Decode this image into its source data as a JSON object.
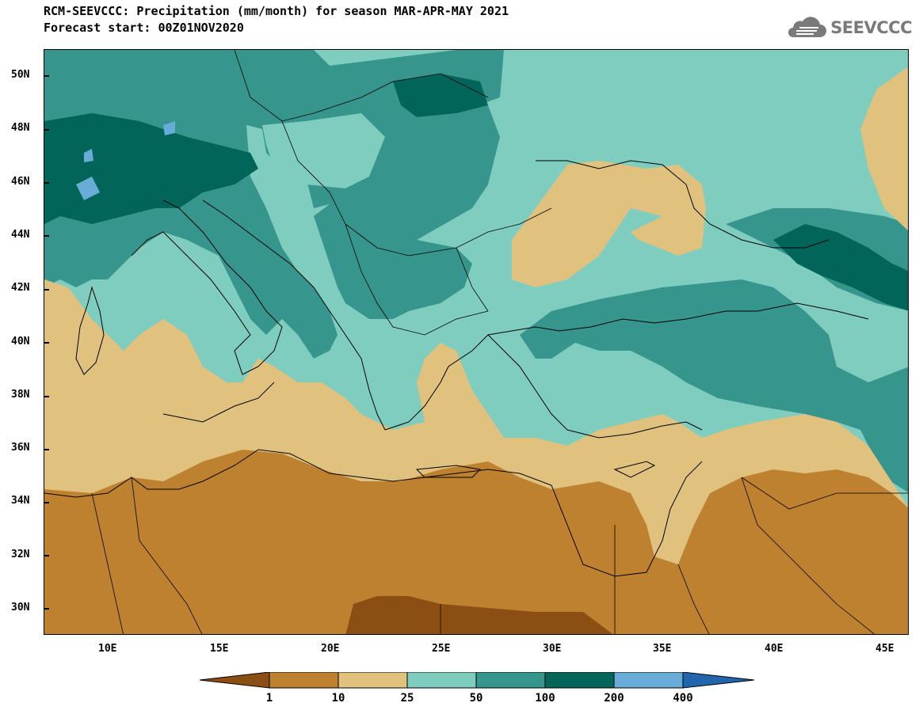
{
  "header": {
    "title_line1": "RCM-SEEVCCC: Precipitation (mm/month) for season MAR-APR-MAY 2021",
    "title_line2": "Forecast start: 00Z01NOV2020",
    "logo_text": "SEEVCCC"
  },
  "map": {
    "lat_labels": [
      "50N",
      "48N",
      "46N",
      "44N",
      "42N",
      "40N",
      "38N",
      "36N",
      "34N",
      "32N",
      "30N"
    ],
    "lon_labels": [
      "10E",
      "15E",
      "20E",
      "25E",
      "30E",
      "35E",
      "40E",
      "45E"
    ],
    "colors": {
      "lt1": "#8b4f13",
      "c1_10": "#be8130",
      "c10_25": "#e0c27e",
      "c25_50": "#7fcdbf",
      "c50_100": "#36958c",
      "c100_200": "#02655a",
      "c200_400": "#69acd7",
      "gt400": "#2166ac"
    }
  },
  "colorbar": {
    "labels": [
      "1",
      "10",
      "25",
      "50",
      "100",
      "200",
      "400"
    ]
  }
}
